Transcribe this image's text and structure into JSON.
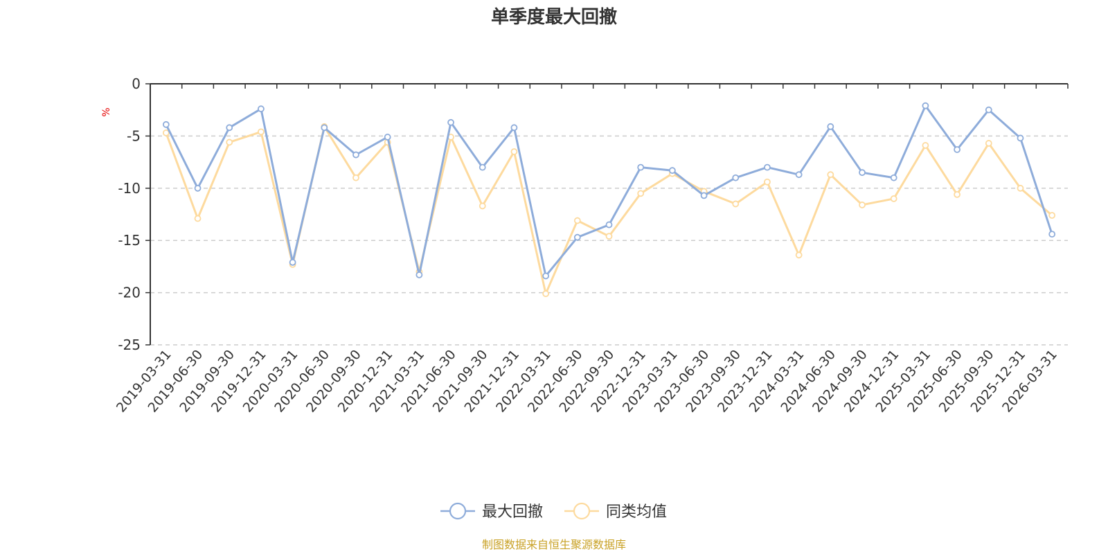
{
  "chart_data": {
    "type": "line",
    "title": "单季度最大回撤",
    "ylabel": "%",
    "xlabel": "",
    "ylim": [
      -25,
      0
    ],
    "yticks": [
      0,
      -5,
      -10,
      -15,
      -20,
      -25
    ],
    "grid": true,
    "legend_position": "bottom",
    "categories": [
      "2019-03-31",
      "2019-06-30",
      "2019-09-30",
      "2019-12-31",
      "2020-03-31",
      "2020-06-30",
      "2020-09-30",
      "2020-12-31",
      "2021-03-31",
      "2021-06-30",
      "2021-09-30",
      "2021-12-31",
      "2022-03-31",
      "2022-06-30",
      "2022-09-30",
      "2022-12-31",
      "2023-03-31",
      "2023-06-30",
      "2023-09-30",
      "2023-12-31",
      "2024-03-31",
      "2024-06-30",
      "2024-09-30",
      "2024-12-31",
      "2025-03-31",
      "2025-06-30",
      "2025-09-30",
      "2025-12-31",
      "2026-03-31"
    ],
    "series": [
      {
        "name": "最大回撤",
        "color": "#8EACDA",
        "values": [
          -3.9,
          -10.0,
          -4.2,
          -2.4,
          -17.1,
          -4.2,
          -6.8,
          -5.1,
          -18.3,
          -3.7,
          -8.0,
          -4.2,
          -18.4,
          -14.7,
          -13.5,
          -8.0,
          -8.3,
          -10.7,
          -9.0,
          -8.0,
          -8.7,
          -4.1,
          -8.5,
          -9.0,
          -2.1,
          -6.3,
          -2.5,
          -5.2,
          -14.4
        ]
      },
      {
        "name": "同类均值",
        "color": "#FDDA9E",
        "values": [
          -4.7,
          -12.9,
          -5.6,
          -4.6,
          -17.3,
          -4.1,
          -9.0,
          -5.6,
          -18.0,
          -5.1,
          -11.7,
          -6.5,
          -20.1,
          -13.1,
          -14.6,
          -10.5,
          -8.6,
          -10.3,
          -11.5,
          -9.4,
          -16.4,
          -8.7,
          -11.6,
          -11.0,
          -5.9,
          -10.6,
          -5.7,
          -10.0,
          -12.6
        ]
      }
    ]
  },
  "source_note": "制图数据来自恒生聚源数据库",
  "colors": {
    "unit_label": "#e60000",
    "source_note": "#c9a227",
    "axis": "#333333",
    "grid": "#cccccc"
  }
}
